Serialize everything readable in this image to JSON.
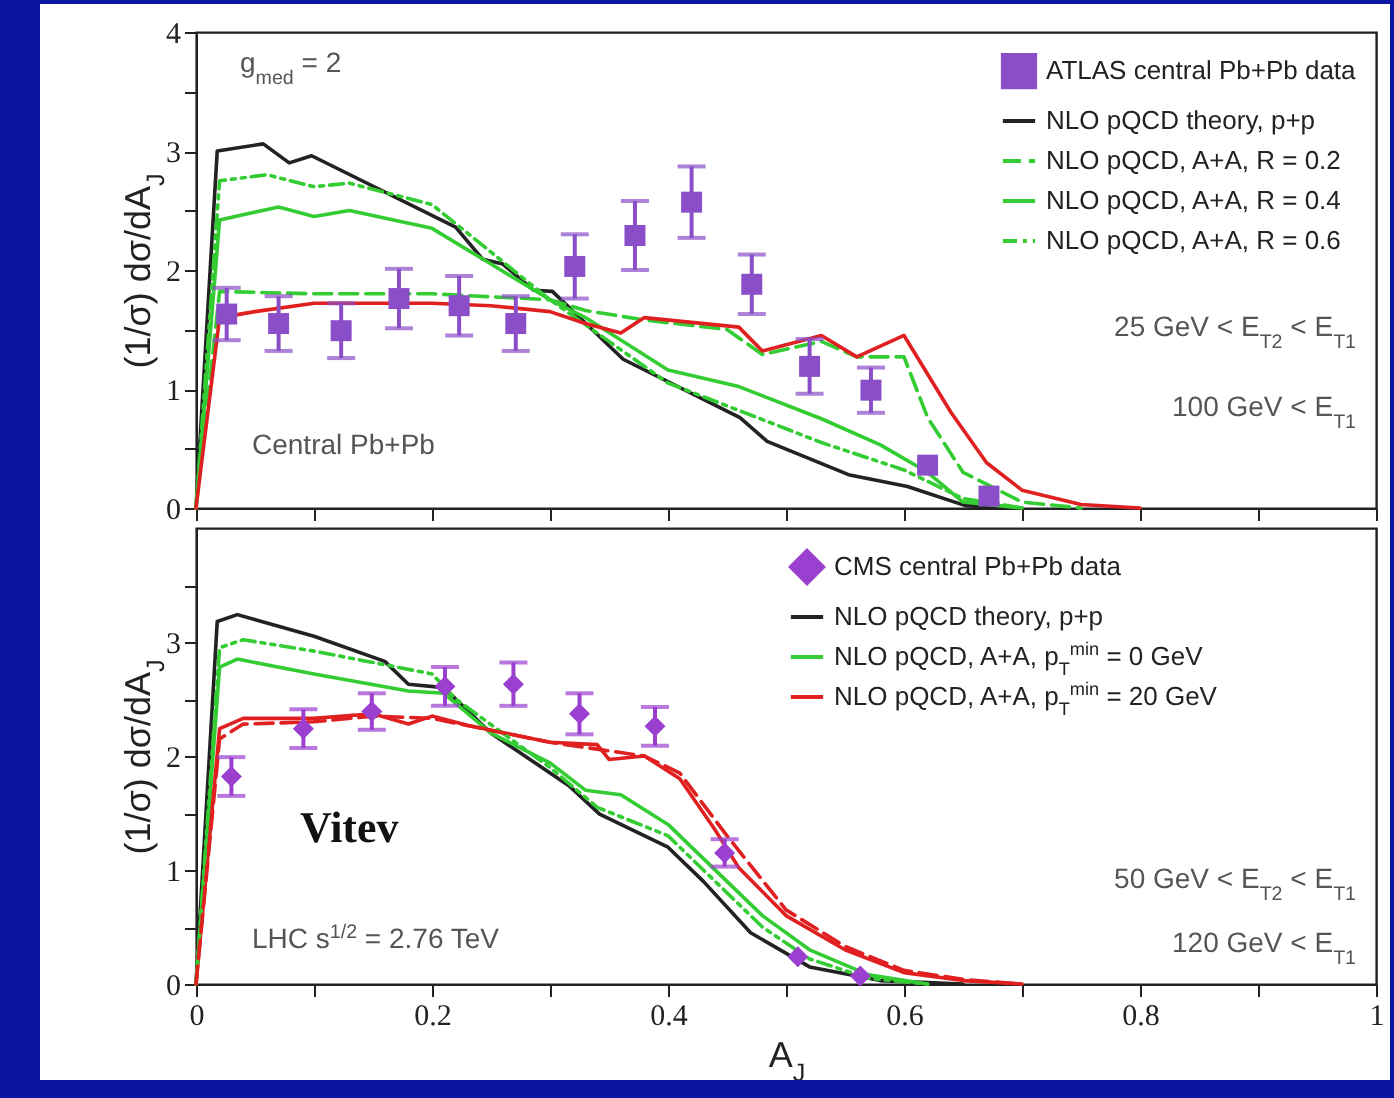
{
  "chart_data": [
    {
      "type": "line",
      "ylabel": "(1/σ) dσ/dA$_{J}$",
      "xlim": [
        0,
        1
      ],
      "ylim": [
        0,
        4
      ],
      "tick_labels": "y",
      "legend": "top right",
      "grid": false,
      "xticks": [
        {
          "value": 0,
          "label": null
        },
        {
          "value": 0.1,
          "label": null
        },
        {
          "value": 0.2,
          "label": null
        },
        {
          "value": 0.3,
          "label": null
        },
        {
          "value": 0.4,
          "label": null
        },
        {
          "value": 0.5,
          "label": null
        },
        {
          "value": 0.6,
          "label": null
        },
        {
          "value": 0.7,
          "label": null
        },
        {
          "value": 0.8,
          "label": null
        },
        {
          "value": 0.9,
          "label": null
        },
        {
          "value": 1,
          "label": null
        }
      ],
      "yticks": [
        0,
        {
          "value": 0.5,
          "label": null
        },
        1,
        {
          "value": 1.5,
          "label": null
        },
        2,
        {
          "value": 2.5,
          "label": null
        },
        3,
        {
          "value": 3.5,
          "label": null
        },
        4
      ],
      "annotations": [
        "g$_{med}$ = 2",
        "25 GeV < E$_{T2}$ < E$_{T1}$",
        "100 GeV < E$_{T1}$",
        "Central Pb+Pb"
      ],
      "series": [
        {
          "name": "ATLAS central Pb+Pb data",
          "type": "scatter",
          "marker": "square",
          "color": "#8a4fc8",
          "x": [
            0.026,
            0.07,
            0.123,
            0.172,
            0.223,
            0.271,
            0.321,
            0.372,
            0.42,
            0.471,
            0.52,
            0.572,
            0.62,
            0.672
          ],
          "values": [
            1.63,
            1.55,
            1.49,
            1.76,
            1.7,
            1.55,
            2.03,
            2.29,
            2.57,
            1.88,
            1.19,
            0.99,
            0.36,
            0.1
          ],
          "errors": [
            0.22,
            0.23,
            0.23,
            0.25,
            0.25,
            0.23,
            0.27,
            0.29,
            0.3,
            0.25,
            0.23,
            0.19,
            null,
            null
          ]
        },
        {
          "name": "NLO pQCD theory, p+p",
          "color": "#222222",
          "line_style": "solid",
          "x": [
            0,
            0.018,
            0.057,
            0.079,
            0.098,
            0.22,
            0.243,
            0.26,
            0.286,
            0.302,
            0.362,
            0.461,
            0.484,
            0.553,
            0.603,
            0.652,
            0.7
          ],
          "values": [
            0,
            3.0,
            3.06,
            2.9,
            2.96,
            2.36,
            2.09,
            2.05,
            1.83,
            1.82,
            1.25,
            0.76,
            0.56,
            0.28,
            0.18,
            0.02,
            0
          ]
        },
        {
          "name": "NLO pQCD, A+A, R = 0.2",
          "color": "#33cc33",
          "line_style": "dashed",
          "x": [
            0,
            0.02,
            0.1,
            0.2,
            0.3,
            0.33,
            0.38,
            0.45,
            0.48,
            0.53,
            0.56,
            0.6,
            0.62,
            0.65,
            0.7,
            0.75
          ],
          "values": [
            0,
            1.82,
            1.8,
            1.8,
            1.75,
            1.66,
            1.58,
            1.5,
            1.29,
            1.4,
            1.27,
            1.27,
            0.76,
            0.3,
            0.05,
            0
          ]
        },
        {
          "name": "NLO pQCD, A+A, R = 0.4",
          "color": "#33cc33",
          "line_style": "solid",
          "x": [
            0,
            0.02,
            0.07,
            0.1,
            0.13,
            0.2,
            0.25,
            0.3,
            0.33,
            0.4,
            0.46,
            0.53,
            0.58,
            0.62,
            0.65,
            0.7
          ],
          "values": [
            0,
            2.42,
            2.53,
            2.45,
            2.5,
            2.35,
            2.05,
            1.75,
            1.6,
            1.16,
            1.02,
            0.75,
            0.53,
            0.3,
            0.05,
            0
          ]
        },
        {
          "name": "NLO pQCD, A+A, R = 0.6",
          "color": "#33cc33",
          "line_style": "dashdot",
          "x": [
            0,
            0.02,
            0.06,
            0.1,
            0.13,
            0.2,
            0.25,
            0.3,
            0.35,
            0.4,
            0.46,
            0.53,
            0.6,
            0.65,
            0.7
          ],
          "values": [
            0,
            2.75,
            2.8,
            2.7,
            2.73,
            2.55,
            2.15,
            1.75,
            1.4,
            1.05,
            0.82,
            0.55,
            0.32,
            0.08,
            0
          ]
        },
        {
          "color": "#e02020",
          "line_style": "solid",
          "x": [
            0,
            0.02,
            0.05,
            0.1,
            0.2,
            0.25,
            0.3,
            0.33,
            0.36,
            0.38,
            0.46,
            0.48,
            0.53,
            0.56,
            0.6,
            0.64,
            0.67,
            0.7,
            0.75,
            0.8
          ],
          "values": [
            0,
            1.6,
            1.65,
            1.72,
            1.72,
            1.7,
            1.65,
            1.55,
            1.47,
            1.6,
            1.52,
            1.32,
            1.45,
            1.27,
            1.45,
            0.8,
            0.38,
            0.15,
            0.03,
            0
          ]
        }
      ]
    },
    {
      "type": "line",
      "xlabel": "A$_{J}$",
      "ylabel": "(1/σ) dσ/dA$_{J}$",
      "xlim": [
        0,
        1
      ],
      "ylim": [
        0,
        4
      ],
      "legend": "top right",
      "grid": false,
      "xticks": [
        0,
        {
          "value": 0.1,
          "label": null
        },
        {
          "value": 0.2,
          "label": "0.2"
        },
        {
          "value": 0.3,
          "label": null
        },
        {
          "value": 0.4,
          "label": "0.4"
        },
        {
          "value": 0.5,
          "label": null
        },
        {
          "value": 0.6,
          "label": "0.6"
        },
        {
          "value": 0.7,
          "label": null
        },
        {
          "value": 0.8,
          "label": "0.8"
        },
        {
          "value": 0.9,
          "label": null
        },
        1
      ],
      "yticks": [
        0,
        {
          "value": 0.5,
          "label": null
        },
        1,
        {
          "value": 1.5,
          "label": null
        },
        2,
        {
          "value": 2.5,
          "label": null
        },
        3,
        {
          "value": 3.5,
          "label": null
        }
      ],
      "annotations": [
        "Vitev",
        "LHC s$^{1/2}$ = 2.76 TeV",
        "50 GeV < E$_{T2}$ < E$_{T1}$",
        "120 GeV < E$_{T1}$"
      ],
      "series": [
        {
          "name": "CMS central Pb+Pb data",
          "type": "scatter",
          "marker": "diamond",
          "color": "#9a3fd0",
          "x": [
            0.03,
            0.091,
            0.149,
            0.211,
            0.269,
            0.325,
            0.389,
            0.448,
            0.51,
            0.563
          ],
          "values": [
            1.82,
            2.24,
            2.39,
            2.61,
            2.63,
            2.37,
            2.26,
            1.15,
            0.24,
            0.07
          ],
          "errors": [
            0.17,
            0.17,
            0.16,
            0.17,
            0.19,
            0.18,
            0.17,
            0.12,
            null,
            null
          ]
        },
        {
          "name": "NLO pQCD theory, p+p",
          "color": "#222222",
          "line_style": "solid",
          "x": [
            0,
            0.018,
            0.035,
            0.1,
            0.16,
            0.18,
            0.21,
            0.25,
            0.316,
            0.342,
            0.4,
            0.43,
            0.47,
            0.52,
            0.58,
            0.65
          ],
          "values": [
            0,
            3.18,
            3.24,
            3.05,
            2.83,
            2.63,
            2.6,
            2.2,
            1.74,
            1.49,
            1.2,
            0.9,
            0.45,
            0.15,
            0.03,
            0
          ]
        },
        {
          "name": "NLO pQCD, A+A, p$_{T}$$^{min}$ = 0 GeV",
          "color": "#33cc33",
          "line_style": "solid",
          "x": [
            0,
            0.02,
            0.035,
            0.1,
            0.18,
            0.21,
            0.25,
            0.3,
            0.33,
            0.36,
            0.4,
            0.43,
            0.48,
            0.52,
            0.57,
            0.62
          ],
          "values": [
            0,
            2.78,
            2.85,
            2.72,
            2.57,
            2.55,
            2.2,
            1.94,
            1.7,
            1.66,
            1.4,
            1.1,
            0.6,
            0.3,
            0.08,
            0
          ]
        },
        {
          "name": "NLO pQCD, A+A, p$_{T}$$^{min}$ = 20 GeV",
          "color": "#e02020",
          "line_style": "solid",
          "x": [
            0,
            0.02,
            0.04,
            0.1,
            0.15,
            0.18,
            0.2,
            0.23,
            0.3,
            0.34,
            0.35,
            0.38,
            0.41,
            0.44,
            0.46,
            0.5,
            0.55,
            0.6,
            0.65,
            0.7
          ],
          "values": [
            0,
            2.24,
            2.33,
            2.33,
            2.37,
            2.28,
            2.35,
            2.27,
            2.12,
            2.1,
            1.97,
            2.0,
            1.8,
            1.35,
            1.02,
            0.6,
            0.3,
            0.1,
            0.03,
            0
          ]
        },
        {
          "color": "#33cc33",
          "line_style": "dashdot",
          "x": [
            0,
            0.02,
            0.04,
            0.1,
            0.16,
            0.2,
            0.22,
            0.3,
            0.34,
            0.4,
            0.43,
            0.48,
            0.52,
            0.57,
            0.62
          ],
          "values": [
            0,
            2.95,
            3.02,
            2.92,
            2.8,
            2.72,
            2.5,
            1.9,
            1.55,
            1.3,
            1.0,
            0.5,
            0.22,
            0.05,
            0
          ]
        },
        {
          "color": "#e02020",
          "line_style": "dashed",
          "x": [
            0,
            0.02,
            0.04,
            0.1,
            0.15,
            0.2,
            0.3,
            0.38,
            0.41,
            0.45,
            0.5,
            0.55,
            0.6,
            0.65,
            0.7
          ],
          "values": [
            0,
            2.15,
            2.28,
            2.3,
            2.35,
            2.33,
            2.12,
            2.0,
            1.85,
            1.3,
            0.65,
            0.33,
            0.12,
            0.04,
            0
          ]
        }
      ]
    }
  ]
}
